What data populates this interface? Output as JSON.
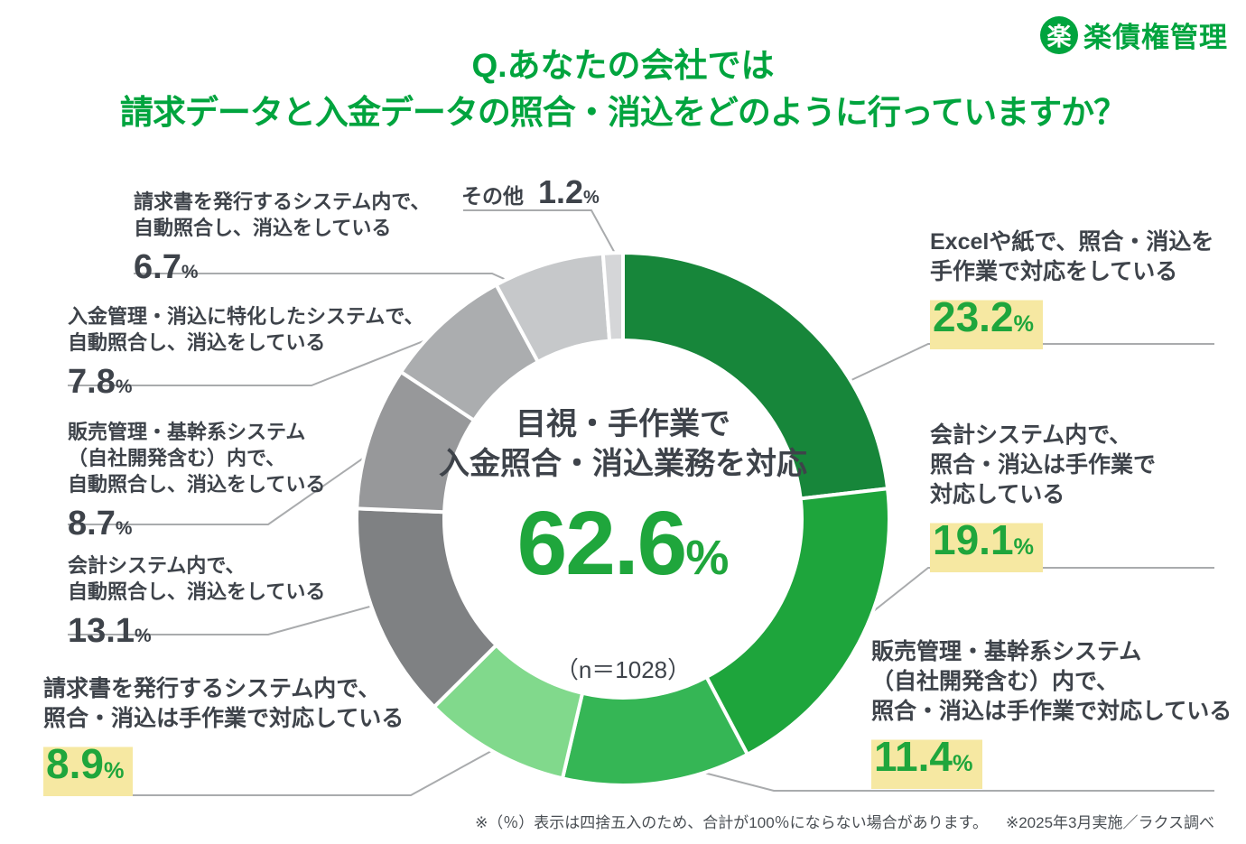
{
  "brand": {
    "mark": "楽",
    "name": "楽債権管理"
  },
  "title": {
    "line1": "Q.あなたの会社では",
    "line2": "請求データと入金データの照合・消込をどのように行っていますか？"
  },
  "units": {
    "percent": "%"
  },
  "chart_data": {
    "type": "pie",
    "subtype": "donut",
    "title": "請求データと入金データの照合・消込をどのように行っていますか？",
    "n": 1028,
    "n_label": "（n＝1028）",
    "center": {
      "line1": "目視・手作業で",
      "line2": "入金照合・消込業務を対応",
      "total_value": "62.6"
    },
    "segments": [
      {
        "label": "Excelや紙で、照合・消込を手作業で対応をしている",
        "value": 23.2,
        "color": "#17863a",
        "manual": true
      },
      {
        "label": "会計システム内で、照合・消込は手作業で対応している",
        "value": 19.1,
        "color": "#1ea53c",
        "manual": true
      },
      {
        "label": "販売管理・基幹系システム（自社開発含む）内で、照合・消込は手作業で対応している",
        "value": 11.4,
        "color": "#35b655",
        "manual": true
      },
      {
        "label": "請求書を発行するシステム内で、照合・消込は手作業で対応している",
        "value": 8.9,
        "color": "#81d98c",
        "manual": true
      },
      {
        "label": "会計システム内で、自動照合し、消込をしている",
        "value": 13.1,
        "color": "#7f8183",
        "manual": false
      },
      {
        "label": "販売管理・基幹系システム（自社開発含む）内で、自動照合し、消込をしている",
        "value": 8.7,
        "color": "#97989a",
        "manual": false
      },
      {
        "label": "入金管理・消込に特化したシステムで、自動照合し、消込をしている",
        "value": 7.8,
        "color": "#abadaf",
        "manual": false
      },
      {
        "label": "請求書を発行するシステム内で、自動照合し、消込をしている",
        "value": 6.7,
        "color": "#c6c8ca",
        "manual": false
      },
      {
        "label": "その他",
        "value": 1.2,
        "color": "#d5d6d8",
        "manual": false
      }
    ]
  },
  "callouts": {
    "top": {
      "label": "その他"
    },
    "left": [
      {
        "lines": [
          "請求書を発行するシステム内で、",
          "自動照合し、消込をしている"
        ]
      },
      {
        "lines": [
          "入金管理・消込に特化したシステムで、",
          "自動照合し、消込をしている"
        ]
      },
      {
        "lines": [
          "販売管理・基幹系システム",
          "（自社開発含む）内で、",
          "自動照合し、消込をしている"
        ]
      },
      {
        "lines": [
          "会計システム内で、",
          "自動照合し、消込をしている"
        ]
      },
      {
        "lines": [
          "請求書を発行するシステム内で、",
          "照合・消込は手作業で対応している"
        ]
      }
    ],
    "right": [
      {
        "lines": [
          "Excelや紙で、照合・消込を",
          "手作業で対応をしている"
        ]
      },
      {
        "lines": [
          "会計システム内で、",
          "照合・消込は手作業で",
          "対応している"
        ]
      },
      {
        "lines": [
          "販売管理・基幹系システム",
          "（自社開発含む）内で、",
          "照合・消込は手作業で対応している"
        ]
      }
    ]
  },
  "footnote": {
    "note1": "※（％）表示は四捨五入のため、合計が100％にならない場合があります。",
    "note2": "※2025年3月実施／ラクス調べ"
  },
  "colors": {
    "brand_green": "#00a43e",
    "accent_green": "#1fa63c",
    "highlight_yellow": "#f6e8a2",
    "text_dark": "#3e434a",
    "connector_gray": "#a9abad"
  }
}
